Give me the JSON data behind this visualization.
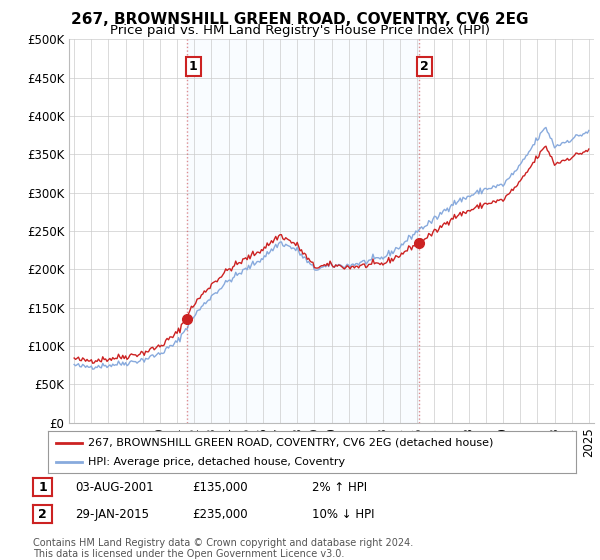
{
  "title": "267, BROWNSHILL GREEN ROAD, COVENTRY, CV6 2EG",
  "subtitle": "Price paid vs. HM Land Registry's House Price Index (HPI)",
  "ylim": [
    0,
    500000
  ],
  "yticks": [
    0,
    50000,
    100000,
    150000,
    200000,
    250000,
    300000,
    350000,
    400000,
    450000,
    500000
  ],
  "ytick_labels": [
    "£0",
    "£50K",
    "£100K",
    "£150K",
    "£200K",
    "£250K",
    "£300K",
    "£350K",
    "£400K",
    "£450K",
    "£500K"
  ],
  "xlim_start": 1994.7,
  "xlim_end": 2025.3,
  "sale1_x": 2001.58,
  "sale1_y": 135000,
  "sale1_label": "1",
  "sale2_x": 2015.08,
  "sale2_y": 235000,
  "sale2_label": "2",
  "house_color": "#cc2222",
  "hpi_color": "#88aadd",
  "annotation_color": "#cc2222",
  "bg_color": "#ffffff",
  "grid_color": "#cccccc",
  "shading_color": "#ddeeff",
  "legend_label1": "267, BROWNSHILL GREEN ROAD, COVENTRY, CV6 2EG (detached house)",
  "legend_label2": "HPI: Average price, detached house, Coventry",
  "table_row1": [
    "1",
    "03-AUG-2001",
    "£135,000",
    "2% ↑ HPI"
  ],
  "table_row2": [
    "2",
    "29-JAN-2015",
    "£235,000",
    "10% ↓ HPI"
  ],
  "footnote": "Contains HM Land Registry data © Crown copyright and database right 2024.\nThis data is licensed under the Open Government Licence v3.0.",
  "title_fontsize": 11,
  "subtitle_fontsize": 9.5,
  "tick_fontsize": 8.5,
  "dashed_line_color": "#cc4444",
  "dashed_line_alpha": 0.6
}
